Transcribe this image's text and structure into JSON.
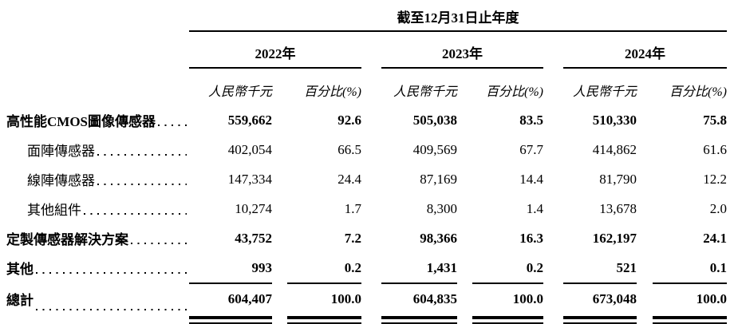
{
  "table": {
    "title": "截至12月31日止年度",
    "year_groups": [
      {
        "label": "2022年"
      },
      {
        "label": "2023年"
      },
      {
        "label": "2024年"
      }
    ],
    "col_headers": [
      "人民幣千元",
      "百分比(%)",
      "人民幣千元",
      "百分比(%)",
      "人民幣千元",
      "百分比(%)"
    ],
    "rows": [
      {
        "label": "高性能CMOS圖像傳感器",
        "v": [
          "559,662",
          "92.6",
          "505,038",
          "83.5",
          "510,330",
          "75.8"
        ]
      },
      {
        "label": "面陣傳感器",
        "v": [
          "402,054",
          "66.5",
          "409,569",
          "67.7",
          "414,862",
          "61.6"
        ]
      },
      {
        "label": "線陣傳感器",
        "v": [
          "147,334",
          "24.4",
          "87,169",
          "14.4",
          "81,790",
          "12.2"
        ]
      },
      {
        "label": "其他組件",
        "v": [
          "10,274",
          "1.7",
          "8,300",
          "1.4",
          "13,678",
          "2.0"
        ]
      },
      {
        "label": "定製傳感器解決方案",
        "v": [
          "43,752",
          "7.2",
          "98,366",
          "16.3",
          "162,197",
          "24.1"
        ]
      },
      {
        "label": "其他",
        "v": [
          "993",
          "0.2",
          "1,431",
          "0.2",
          "521",
          "0.1"
        ]
      }
    ],
    "total": {
      "label": "總計",
      "v": [
        "604,407",
        "100.0",
        "604,835",
        "100.0",
        "673,048",
        "100.0"
      ]
    }
  }
}
